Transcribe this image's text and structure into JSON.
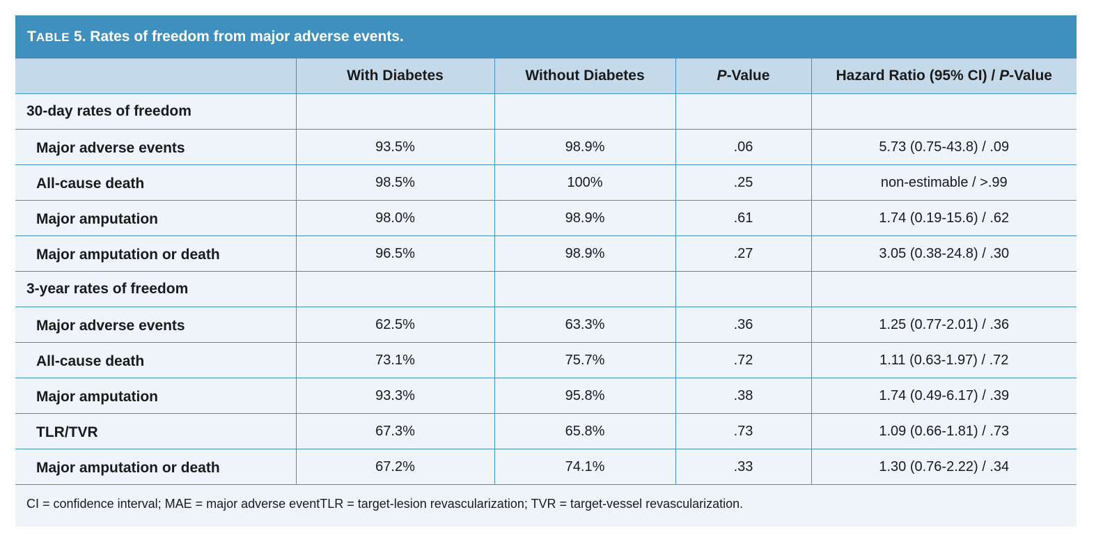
{
  "table": {
    "title_prefix_big": "T",
    "title_prefix_small": "ABLE",
    "title_text": " 5. Rates of freedom from major adverse events.",
    "headers": {
      "col0": "",
      "with_diabetes": "With Diabetes",
      "without_diabetes": "Without Diabetes",
      "p_value_italic": "P",
      "p_value_rest": "-Value",
      "hazard_ratio_pre": "Hazard Ratio (95% CI) / ",
      "hazard_ratio_italic": "P",
      "hazard_ratio_rest": "-Value"
    },
    "sections": [
      {
        "label": "30-day rates of freedom",
        "rows": [
          {
            "label": "Major adverse events",
            "with": "93.5%",
            "without": "98.9%",
            "p": ".06",
            "hr": "5.73 (0.75-43.8) / .09"
          },
          {
            "label": "All-cause death",
            "with": "98.5%",
            "without": "100%",
            "p": ".25",
            "hr": "non-estimable / >.99"
          },
          {
            "label": "Major amputation",
            "with": "98.0%",
            "without": "98.9%",
            "p": ".61",
            "hr": "1.74 (0.19-15.6) / .62"
          },
          {
            "label": "Major amputation or death",
            "with": "96.5%",
            "without": "98.9%",
            "p": ".27",
            "hr": "3.05 (0.38-24.8) / .30"
          }
        ]
      },
      {
        "label": "3-year rates of freedom",
        "rows": [
          {
            "label": "Major adverse events",
            "with": "62.5%",
            "without": "63.3%",
            "p": ".36",
            "hr": "1.25 (0.77-2.01) / .36"
          },
          {
            "label": "All-cause death",
            "with": "73.1%",
            "without": "75.7%",
            "p": ".72",
            "hr": "1.11 (0.63-1.97) / .72"
          },
          {
            "label": "Major amputation",
            "with": "93.3%",
            "without": "95.8%",
            "p": ".38",
            "hr": "1.74 (0.49-6.17) / .39"
          },
          {
            "label": "TLR/TVR",
            "with": "67.3%",
            "without": "65.8%",
            "p": ".73",
            "hr": "1.09 (0.66-1.81) / .73"
          },
          {
            "label": "Major amputation or death",
            "with": "67.2%",
            "without": "74.1%",
            "p": ".33",
            "hr": "1.30 (0.76-2.22) / .34"
          }
        ]
      }
    ],
    "footnote": "CI = confidence interval; MAE = major adverse eventTLR = target-lesion revascularization; TVR =  target-vessel revascularization."
  },
  "colors": {
    "title_bar": "#3f90bf",
    "header_bg": "#c4d9ea",
    "body_bg": "#eef4f9",
    "grid_lines": "#3f90bf"
  }
}
